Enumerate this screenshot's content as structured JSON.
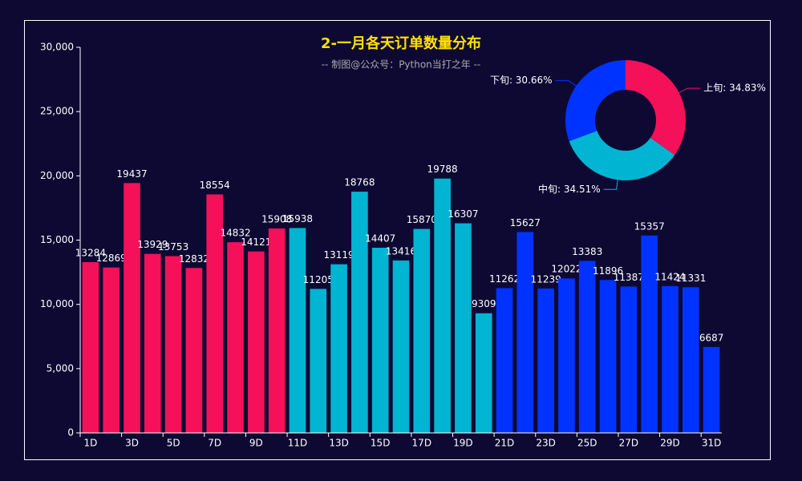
{
  "chart_data": [
    {
      "type": "bar",
      "title": "2-一月各天订单数量分布",
      "subtitle": "-- 制图@公众号：Python当打之年 --",
      "categories": [
        "1D",
        null,
        "3D",
        null,
        "5D",
        null,
        "7D",
        null,
        "9D",
        null,
        "11D",
        null,
        "13D",
        null,
        "15D",
        null,
        "17D",
        null,
        "19D",
        null,
        "21D",
        null,
        "23D",
        null,
        "25D",
        null,
        "27D",
        null,
        "29D",
        null,
        "31D"
      ],
      "values": [
        13284,
        12869,
        19437,
        13929,
        13753,
        12832,
        18554,
        14832,
        14121,
        15908,
        15938,
        11205,
        13119,
        18768,
        14407,
        13416,
        15870,
        19788,
        16307,
        9309,
        11262,
        15627,
        11239,
        12022,
        13383,
        11896,
        11387,
        15357,
        11424,
        11331,
        6687
      ],
      "colors": [
        "#f5105a",
        "#f5105a",
        "#f5105a",
        "#f5105a",
        "#f5105a",
        "#f5105a",
        "#f5105a",
        "#f5105a",
        "#f5105a",
        "#f5105a",
        "#00b4d2",
        "#00b4d2",
        "#00b4d2",
        "#00b4d2",
        "#00b4d2",
        "#00b4d2",
        "#00b4d2",
        "#00b4d2",
        "#00b4d2",
        "#00b4d2",
        "#0033ff",
        "#0033ff",
        "#0033ff",
        "#0033ff",
        "#0033ff",
        "#0033ff",
        "#0033ff",
        "#0033ff",
        "#0033ff",
        "#0033ff",
        "#0033ff"
      ],
      "ylim": [
        0,
        30000
      ],
      "yticks": [
        0,
        {
          "value": 5000,
          "label": "5,000"
        },
        {
          "value": 10000,
          "label": "10,000"
        },
        {
          "value": 15000,
          "label": "15,000"
        },
        {
          "value": 20000,
          "label": "20,000"
        },
        {
          "value": 25000,
          "label": "25,000"
        },
        {
          "value": 30000,
          "label": "30,000"
        }
      ]
    },
    {
      "type": "pie",
      "values": [
        34.83,
        34.51,
        30.66
      ],
      "value_labels": [
        "上旬: 34.83%",
        "中旬: 34.51%",
        "下旬: 30.66%"
      ],
      "colors": [
        "#f5105a",
        "#00b4d2",
        "#0033ff"
      ]
    }
  ]
}
